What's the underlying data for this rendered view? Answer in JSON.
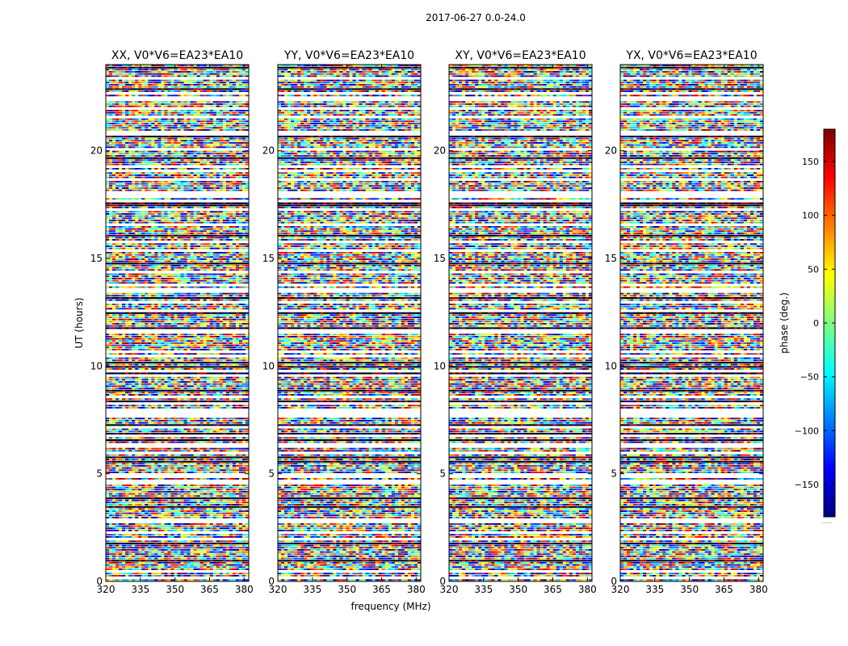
{
  "figure": {
    "suptitle": "2017-06-27 0.0-24.0"
  },
  "colors": {
    "cmap": [
      "#00007f",
      "#0000ff",
      "#007fff",
      "#00ffff",
      "#7fff7f",
      "#ffff00",
      "#ff7f00",
      "#ff0000",
      "#7f0000"
    ],
    "axes": "#000000",
    "background": "#ffffff"
  },
  "chart_data": {
    "type": "heatmap",
    "xlabel": "frequency (MHz)",
    "ylabel": "UT (hours)",
    "xlim": [
      320,
      382
    ],
    "ylim": [
      0,
      24
    ],
    "xticks": [
      320,
      335,
      350,
      365,
      380
    ],
    "yticks": [
      0,
      5,
      10,
      15,
      20
    ],
    "colorbar": {
      "label": "phase (deg.)",
      "range": [
        -180,
        180
      ],
      "ticks": [
        150,
        100,
        50,
        0,
        -50,
        -100,
        -150
      ],
      "tick_labels": [
        "150",
        "100",
        "50",
        "0",
        "−50",
        "−100",
        "−150"
      ],
      "offset_text": "......"
    },
    "panels": [
      {
        "title": "XX, V0*V6=EA23*EA10"
      },
      {
        "title": "YY, V0*V6=EA23*EA10"
      },
      {
        "title": "XY, V0*V6=EA23*EA10"
      },
      {
        "title": "YX, V0*V6=EA23*EA10"
      }
    ]
  }
}
